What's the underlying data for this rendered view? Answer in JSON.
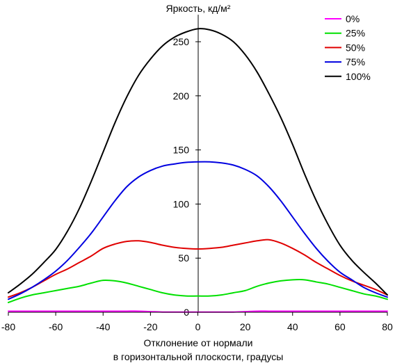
{
  "chart_data": {
    "type": "line",
    "title": "Яркость, кд/м²",
    "xlabel": [
      "Отклонение от нормали",
      "в горизонтальной плоскости, градусы"
    ],
    "ylabel": "",
    "xlim": [
      -80,
      80
    ],
    "ylim": [
      0,
      275
    ],
    "xticks": [
      -80,
      -60,
      -40,
      -20,
      0,
      20,
      40,
      60,
      80
    ],
    "yticks": [
      0,
      50,
      100,
      150,
      200,
      250
    ],
    "grid": false,
    "legend": "top-right",
    "x": [
      -80,
      -75,
      -70,
      -65,
      -60,
      -55,
      -50,
      -45,
      -40,
      -35,
      -30,
      -25,
      -20,
      -15,
      -10,
      -5,
      0,
      5,
      10,
      15,
      20,
      25,
      30,
      35,
      40,
      45,
      50,
      55,
      60,
      65,
      70,
      75,
      80
    ],
    "series": [
      {
        "name": "0%",
        "color": "#ff00ff",
        "values": [
          1,
          1,
          1,
          1,
          1,
          1,
          1,
          1,
          1,
          1,
          1,
          1,
          0.6,
          0.2,
          0.2,
          0.2,
          0.2,
          0.2,
          0.2,
          0.2,
          0.6,
          1,
          1,
          1,
          1,
          1,
          1,
          1,
          1,
          1,
          1,
          1,
          1
        ]
      },
      {
        "name": "25%",
        "color": "#00e000",
        "values": [
          9,
          13,
          16,
          18,
          20,
          22,
          24,
          27,
          29.5,
          29,
          27,
          24,
          21,
          18,
          16,
          15,
          15,
          15,
          16,
          18,
          20,
          24,
          27,
          29,
          30,
          30,
          28,
          26,
          23,
          20,
          17,
          15,
          12
        ]
      },
      {
        "name": "50%",
        "color": "#e00000",
        "values": [
          14,
          18,
          23,
          29,
          35,
          40,
          46,
          52,
          59,
          63,
          65.5,
          66,
          64.5,
          62,
          60,
          59,
          58.5,
          59,
          60,
          62,
          64,
          66,
          67,
          64,
          59,
          53,
          46,
          40,
          34,
          29,
          25,
          21,
          16
        ]
      },
      {
        "name": "75%",
        "color": "#0000e0",
        "values": [
          12,
          17,
          23,
          30,
          38,
          48,
          60,
          73,
          88,
          103,
          116,
          125,
          131,
          135,
          137,
          138.5,
          139,
          139,
          138,
          136,
          132,
          126,
          116,
          103,
          88,
          73,
          59,
          47,
          37,
          30,
          23,
          18,
          14
        ]
      },
      {
        "name": "100%",
        "color": "#000000",
        "values": [
          18,
          26,
          35,
          46,
          58,
          75,
          96,
          121,
          148,
          175,
          199,
          219,
          234,
          246,
          254,
          259,
          262,
          261,
          257,
          250,
          238,
          222,
          202,
          180,
          155,
          128,
          103,
          81,
          62,
          48,
          37,
          27,
          16
        ]
      }
    ]
  }
}
